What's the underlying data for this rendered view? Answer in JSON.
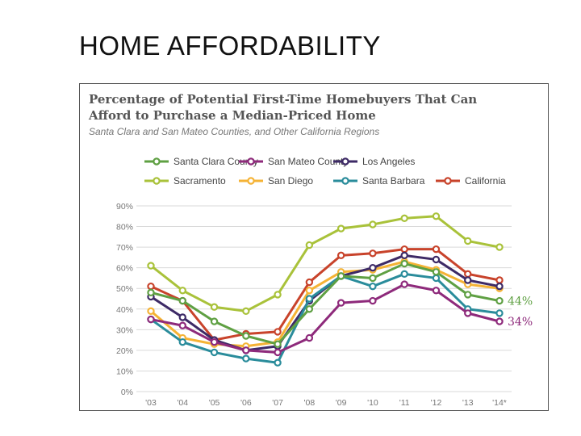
{
  "slide": {
    "title": "HOME AFFORDABILITY"
  },
  "chart_data": {
    "type": "line",
    "title_line1": "Percentage of Potential First-Time Homebuyers That Can",
    "title_line2": "Afford to Purchase a Median-Priced Home",
    "subtitle": "Santa Clara and San Mateo Counties, and Other California Regions",
    "xlabel": "",
    "ylabel": "",
    "ylim": [
      0,
      90
    ],
    "yticks": [
      0,
      10,
      20,
      30,
      40,
      50,
      60,
      70,
      80,
      90
    ],
    "ytick_labels": [
      "0%",
      "10%",
      "20%",
      "30%",
      "40%",
      "50%",
      "60%",
      "70%",
      "80%",
      "90%"
    ],
    "categories": [
      "'03",
      "'04",
      "'05",
      "'06",
      "'07",
      "'08",
      "'09",
      "'10",
      "'11",
      "'12",
      "'13",
      "'14*"
    ],
    "grid": true,
    "series": [
      {
        "name": "Sacramento",
        "color": "#a9c23a",
        "values": [
          61,
          49,
          41,
          39,
          47,
          71,
          79,
          81,
          84,
          85,
          73,
          70
        ]
      },
      {
        "name": "California",
        "color": "#c8432b",
        "values": [
          51,
          44,
          25,
          28,
          29,
          53,
          66,
          67,
          69,
          69,
          57,
          54
        ]
      },
      {
        "name": "San Diego",
        "color": "#f5b335",
        "values": [
          39,
          26,
          23,
          22,
          24,
          49,
          58,
          59,
          63,
          59,
          52,
          50
        ]
      },
      {
        "name": "Los Angeles",
        "color": "#3d2a66",
        "values": [
          46,
          36,
          25,
          20,
          22,
          44,
          56,
          60,
          66,
          64,
          54,
          51
        ]
      },
      {
        "name": "Santa Barbara",
        "color": "#2a8c9b",
        "values": [
          35,
          24,
          19,
          16,
          14,
          45,
          56,
          51,
          57,
          55,
          40,
          38
        ]
      },
      {
        "name": "Santa Clara County",
        "color": "#5fa043",
        "values": [
          48,
          44,
          34,
          27,
          23,
          40,
          56,
          55,
          62,
          58,
          47,
          44
        ]
      },
      {
        "name": "San Mateo County",
        "color": "#8e2a7b",
        "values": [
          35,
          32,
          24,
          20,
          19,
          26,
          43,
          44,
          52,
          49,
          38,
          34
        ]
      }
    ],
    "legend": [
      "Santa Clara County",
      "San Mateo County",
      "Los Angeles",
      "Sacramento",
      "San Diego",
      "Santa Barbara",
      "California"
    ],
    "annotations": [
      {
        "text": "44%",
        "series": "Santa Clara County",
        "color": "#5fa043"
      },
      {
        "text": "34%",
        "series": "San Mateo County",
        "color": "#8e2a7b"
      }
    ]
  }
}
